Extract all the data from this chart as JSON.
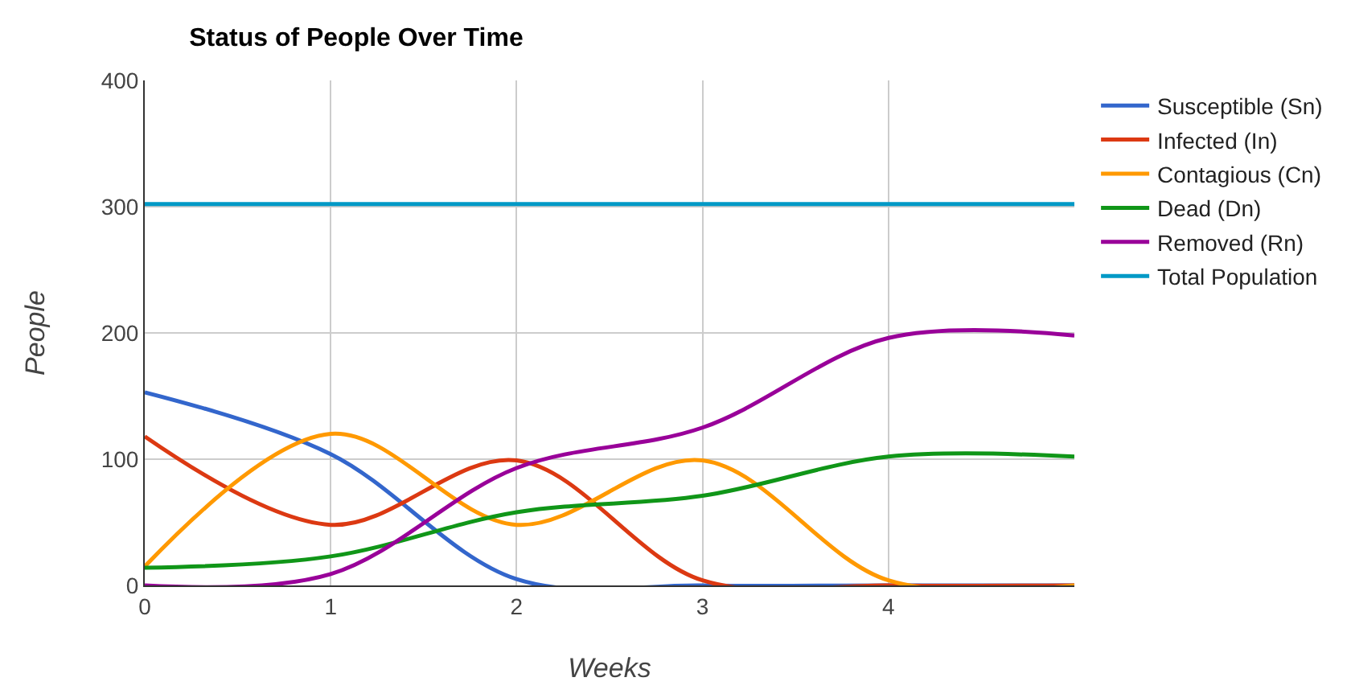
{
  "chart_data": {
    "type": "line",
    "title": "Status of People Over Time",
    "xlabel": "Weeks",
    "ylabel": "People",
    "x": [
      0,
      1,
      2,
      3,
      4,
      5
    ],
    "series": [
      {
        "name": "Susceptible (Sn)",
        "color": "#3366cc",
        "values": [
          153,
          104,
          5,
          0,
          0,
          0
        ]
      },
      {
        "name": "Infected (In)",
        "color": "#dc3912",
        "values": [
          118,
          48,
          99,
          4,
          0,
          0
        ]
      },
      {
        "name": "Contagious (Cn)",
        "color": "#ff9900",
        "values": [
          15,
          120,
          48,
          99,
          4,
          0
        ]
      },
      {
        "name": "Dead (Dn)",
        "color": "#109618",
        "values": [
          14,
          23,
          58,
          71,
          102,
          102
        ]
      },
      {
        "name": "Removed (Rn)",
        "color": "#990099",
        "values": [
          0,
          9,
          93,
          125,
          196,
          198
        ]
      },
      {
        "name": "Total Population",
        "color": "#0099c6",
        "values": [
          302,
          302,
          302,
          302,
          302,
          302
        ]
      }
    ],
    "xlim": [
      0,
      5
    ],
    "xticks": [
      0,
      1,
      2,
      3,
      4
    ],
    "ylim": [
      0,
      400
    ],
    "yticks": [
      0,
      100,
      200,
      300,
      400
    ],
    "grid": true,
    "legend": "right",
    "marker": "none",
    "line_style": "solid"
  }
}
